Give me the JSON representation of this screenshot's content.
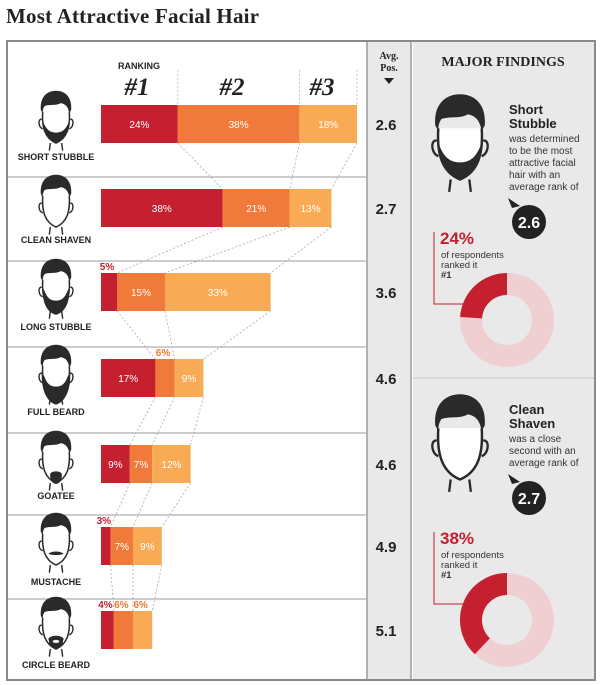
{
  "title": "Most Attractive Facial Hair",
  "header": {
    "ranking": "RANKING",
    "ranks": [
      "#1",
      "#2",
      "#3"
    ],
    "avg_line1": "Avg.",
    "avg_line2": "Pos."
  },
  "colors": {
    "rank1": "#c4202f",
    "rank2": "#f07a3a",
    "rank3": "#f8aa54",
    "side_bg": "#e9e9ea",
    "donut_light": "#f0cfd3",
    "face": "#2a2a2a",
    "label_red": "#c4202f",
    "label_orange": "#e8783a"
  },
  "chart_data": {
    "type": "bar",
    "stacked": true,
    "title": "Most Attractive Facial Hair",
    "categories": [
      "SHORT STUBBLE",
      "CLEAN SHAVEN",
      "LONG STUBBLE",
      "FULL BEARD",
      "GOATEE",
      "MUSTACHE",
      "CIRCLE BEARD"
    ],
    "series": [
      {
        "name": "#1",
        "values": [
          24,
          38,
          5,
          17,
          9,
          3,
          4
        ]
      },
      {
        "name": "#2",
        "values": [
          38,
          21,
          15,
          6,
          7,
          7,
          6
        ]
      },
      {
        "name": "#3",
        "values": [
          18,
          13,
          33,
          9,
          12,
          9,
          6
        ]
      }
    ],
    "value_labels": [
      [
        "24%",
        "38%",
        "18%"
      ],
      [
        "38%",
        "21%",
        "13%"
      ],
      [
        "5%",
        "15%",
        "33%"
      ],
      [
        "17%",
        "6%",
        "9%"
      ],
      [
        "9%",
        "7%",
        "12%"
      ],
      [
        "3%",
        "7%",
        "9%"
      ],
      [
        "4%",
        "6%",
        "6%"
      ]
    ],
    "avg_position": [
      "2.6",
      "2.7",
      "3.6",
      "4.6",
      "4.6",
      "4.9",
      "5.1"
    ]
  },
  "findings": {
    "heading": "MAJOR FINDINGS",
    "items": [
      {
        "name_lines": [
          "Short",
          "Stubble"
        ],
        "desc_lines": [
          "was determined",
          "to be the most",
          "attractive facial",
          "hair with an",
          "average rank of"
        ],
        "rank": "2.6",
        "pct_label": "24%",
        "resp_lines": [
          "of respondents",
          "ranked it",
          "#1"
        ],
        "pct": 24
      },
      {
        "name_lines": [
          "Clean",
          "Shaven"
        ],
        "desc_lines": [
          "was a close",
          "second with an",
          "average rank of"
        ],
        "rank": "2.7",
        "pct_label": "38%",
        "resp_lines": [
          "of respondents",
          "ranked it",
          "#1"
        ],
        "pct": 38
      }
    ]
  }
}
